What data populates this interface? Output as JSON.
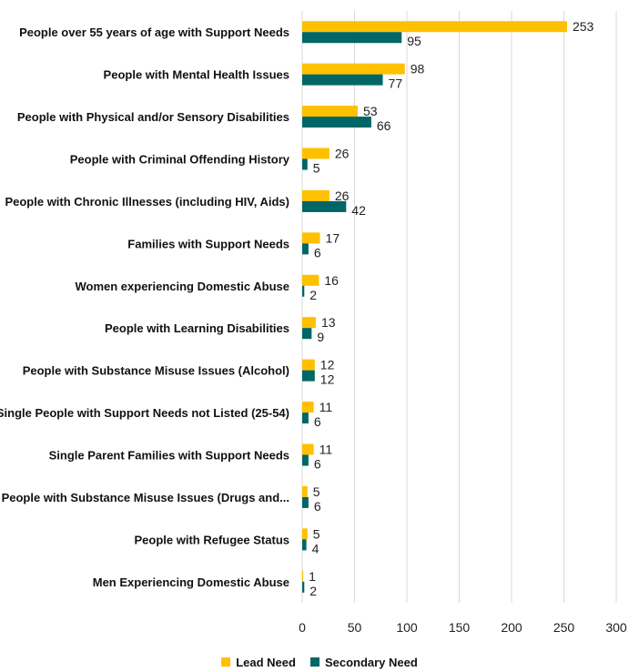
{
  "chart_data": {
    "type": "bar",
    "orientation": "horizontal",
    "categories": [
      "People over 55 years of age with Support Needs",
      "People with Mental Health Issues",
      "People with Physical and/or Sensory Disabilities",
      "People with Criminal Offending History",
      "People with Chronic Illnesses (including HIV, Aids)",
      "Families with Support Needs",
      "Women experiencing Domestic Abuse",
      "People with Learning Disabilities",
      "People with Substance Misuse Issues (Alcohol)",
      "Single People with Support Needs not Listed  (25-54)",
      "Single Parent Families with Support Needs",
      "People with Substance Misuse Issues (Drugs and...",
      "People with Refugee Status",
      "Men Experiencing Domestic Abuse"
    ],
    "series": [
      {
        "name": "Lead Need",
        "color": "#FFC000",
        "values": [
          253,
          98,
          53,
          26,
          26,
          17,
          16,
          13,
          12,
          11,
          11,
          5,
          5,
          1
        ]
      },
      {
        "name": "Secondary Need",
        "color": "#006666",
        "values": [
          95,
          77,
          66,
          5,
          42,
          6,
          2,
          9,
          12,
          6,
          6,
          6,
          4,
          2
        ]
      }
    ],
    "title": "",
    "xlabel": "",
    "ylabel": "",
    "xlim": [
      0,
      300
    ],
    "xticks": [
      0,
      50,
      100,
      150,
      200,
      250,
      300
    ],
    "grid": true,
    "legend_position": "bottom"
  }
}
